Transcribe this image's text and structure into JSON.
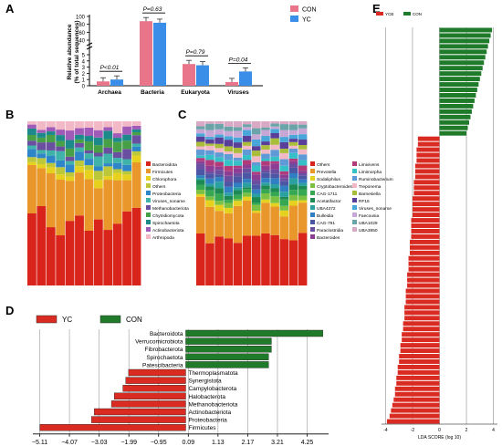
{
  "panel_labels": {
    "a": "A",
    "b": "B",
    "c": "C",
    "d": "D",
    "e": "E"
  },
  "chart_data": [
    {
      "panel": "A",
      "type": "bar",
      "ylabel": "Relative abundance\n(% of total sequences)",
      "categories": [
        "Archaea",
        "Bacteria",
        "Eukaryota",
        "Viruses"
      ],
      "series": [
        {
          "name": "CON",
          "color": "#e8758a",
          "values": [
            0.7,
            88,
            3.5,
            0.6
          ]
        },
        {
          "name": "YC",
          "color": "#3a8ee8",
          "values": [
            1.0,
            84,
            3.3,
            2.3
          ]
        }
      ],
      "yticks": [
        "0",
        "1",
        "2",
        "3",
        "4",
        "5",
        "40",
        "60",
        "80",
        "100"
      ],
      "pvalues": [
        "P<0.01",
        "P=0.63",
        "P=0.79",
        "P=0.04"
      ]
    },
    {
      "panel": "B",
      "type": "bar",
      "stacked": true,
      "legend": [
        "Bacteroidota",
        "Firmicutes",
        "Chlorophora",
        "Others",
        "Proteobacteria",
        "Viruses_noname",
        "Methanobacteriota",
        "Chytridiomycota",
        "Spirochaetota",
        "Actinobacteriota",
        "Arthropoda"
      ],
      "colors": [
        "#d9241c",
        "#e9962a",
        "#e6d21e",
        "#bcc83a",
        "#2e86c9",
        "#3fb3a9",
        "#6a4fa0",
        "#48a046",
        "#1c8a8a",
        "#a05ab8",
        "#f2b8c6"
      ],
      "samples": 12
    },
    {
      "panel": "C",
      "type": "bar",
      "stacked": true,
      "legend": [
        "Others",
        "Prevotella",
        "Sodaliphilus",
        "Cryptobacteroides",
        "CAG-1711",
        "Acetatifactor",
        "UBA4372",
        "Bulleidia",
        "CAG-791",
        "Paraclostridia",
        "Bacteroides",
        "Limivivens",
        "Limimorpha",
        "Ruminobacterium",
        "Treponema",
        "Barnesiella",
        "RF16",
        "Viruses_noname",
        "Faecousia",
        "UBA1029",
        "UBA3850"
      ],
      "colors": [
        "#d9241c",
        "#e9962a",
        "#e6d21e",
        "#7ac143",
        "#36a852",
        "#1d8a54",
        "#2aa1a0",
        "#2f7fc2",
        "#4b57a4",
        "#6a4fa0",
        "#8e3d94",
        "#b03a7a",
        "#35c0c8",
        "#5f9ad6",
        "#f2b8c6",
        "#aabd3b",
        "#5a3f9a",
        "#49a6d8",
        "#c7a7d6",
        "#6aa3a8",
        "#d9a8c4"
      ],
      "samples": 12
    },
    {
      "panel": "D",
      "type": "bar",
      "orientation": "horizontal",
      "xlabel": "LDA SCORE (log 10)",
      "xticks": [
        "−5.11",
        "−4.07",
        "−3.03",
        "−1.99",
        "−0.95",
        "0.09",
        "1.13",
        "2.17",
        "3.21",
        "4.25"
      ],
      "legend": [
        {
          "name": "YC",
          "color": "#d92b22"
        },
        {
          "name": "CON",
          "color": "#1f7a2a"
        }
      ],
      "categories": [
        "Bacteroidota",
        "Verrucomicrobiota",
        "Fibrobacterota",
        "Spirochaetota",
        "Patescibacteria",
        "Thermoplasmatota",
        "Synergistota",
        "Campylobacterota",
        "Halobacterota",
        "Methanobacteriota",
        "Actinobacteriota",
        "Proteobacteria",
        "Firmicutes"
      ],
      "values": [
        4.8,
        3.0,
        3.0,
        2.9,
        2.9,
        -2.0,
        -2.1,
        -2.2,
        -2.5,
        -2.6,
        -3.2,
        -3.3,
        -5.1
      ]
    },
    {
      "panel": "E",
      "type": "bar",
      "orientation": "horizontal",
      "xlabel": "LDA SCORE (log 10)",
      "xticks": [
        "-4",
        "-2",
        "0",
        "2",
        "4"
      ],
      "legend": [
        {
          "name": "YCB",
          "color": "#d92b22"
        },
        {
          "name": "CON",
          "color": "#1f7a2a"
        }
      ],
      "values": [
        3.9,
        3.8,
        3.7,
        3.6,
        3.5,
        3.4,
        3.3,
        3.2,
        3.1,
        3.0,
        2.9,
        2.8,
        2.7,
        2.6,
        2.5,
        2.4,
        2.3,
        2.2,
        2.1,
        2.0,
        -1.6,
        -1.6,
        -1.7,
        -1.7,
        -1.7,
        -1.8,
        -1.8,
        -1.8,
        -1.9,
        -1.9,
        -1.9,
        -2.0,
        -2.0,
        -2.0,
        -2.0,
        -2.1,
        -2.1,
        -2.1,
        -2.1,
        -2.2,
        -2.2,
        -2.2,
        -2.3,
        -2.3,
        -2.3,
        -2.4,
        -2.4,
        -2.4,
        -2.5,
        -2.5,
        -2.5,
        -2.6,
        -2.6,
        -2.6,
        -2.7,
        -2.7,
        -2.8,
        -2.8,
        -2.9,
        -2.9,
        -3.0,
        -3.0,
        -3.1,
        -3.1,
        -3.2,
        -3.2,
        -3.3,
        -3.3,
        -3.4,
        -3.5,
        -3.6,
        -3.7,
        -3.9
      ]
    }
  ]
}
